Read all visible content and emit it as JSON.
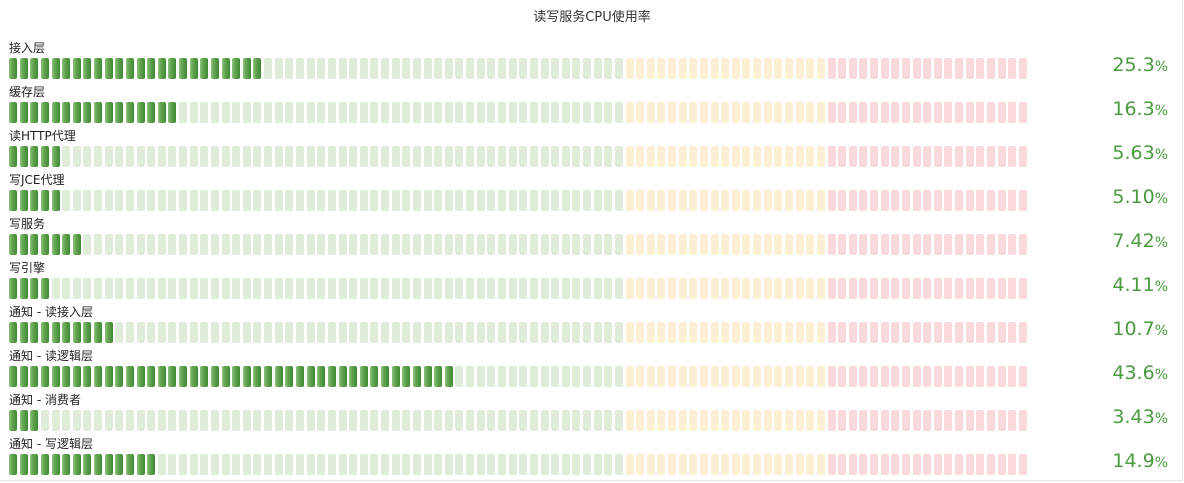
{
  "chart_data": {
    "type": "bar",
    "title": "读写服务CPU使用率",
    "xlim": [
      0,
      100
    ],
    "unit": "%",
    "thresholds": [
      {
        "from": 0,
        "to": 60,
        "color": "#5ea04e",
        "bg": "#dfecd9"
      },
      {
        "from": 60,
        "to": 80,
        "color": "#e8c26a",
        "bg": "#fbf0d4"
      },
      {
        "from": 80,
        "to": 100,
        "color": "#e06b6b",
        "bg": "#f9d9dc"
      }
    ],
    "categories": [
      "接入层",
      "缓存层",
      "读HTTP代理",
      "写JCE代理",
      "写服务",
      "写引擎",
      "通知 - 读接入层",
      "通知 - 读逻辑层",
      "通知 - 消费者",
      "通知 - 写逻辑层"
    ],
    "values": [
      25.3,
      16.3,
      5.63,
      5.1,
      7.42,
      4.11,
      10.7,
      43.6,
      3.43,
      14.9
    ],
    "value_labels": [
      "25.3",
      "16.3",
      "5.63",
      "5.10",
      "7.42",
      "4.11",
      "10.7",
      "43.6",
      "3.43",
      "14.9"
    ]
  }
}
